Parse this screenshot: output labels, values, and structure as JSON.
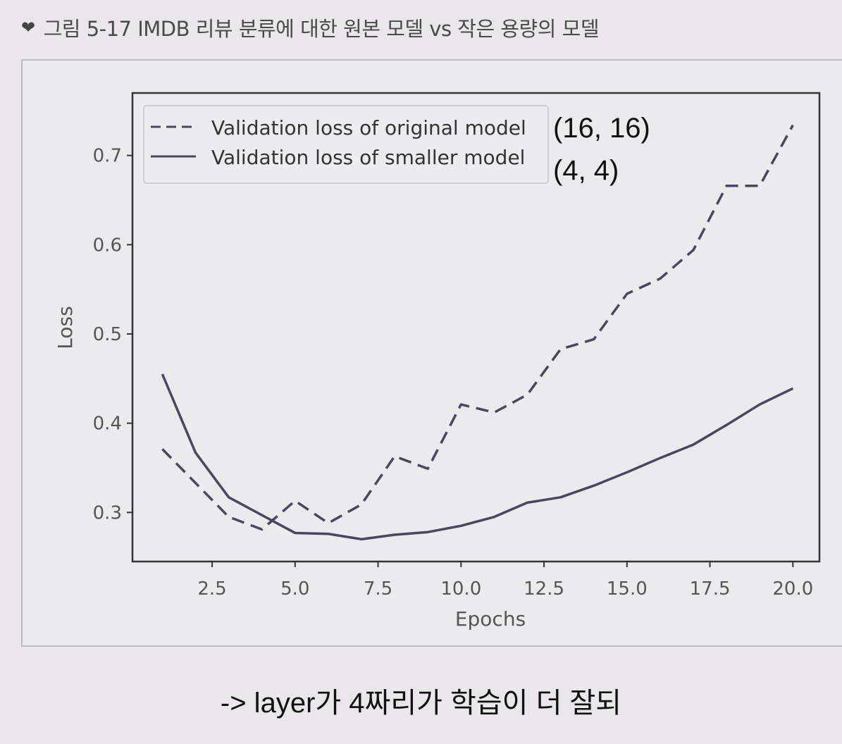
{
  "caption": {
    "icon": "chevron-down-icon",
    "text": "그림 5-17 IMDB 리뷰 분류에 대한 원본 모델 vs 작은 용량의 모델"
  },
  "annotations": {
    "original_size": "(16, 16)",
    "smaller_size": "(4, 4)",
    "note": "-> layer가 4짜리가 학습이 더 잘되"
  },
  "chart_data": {
    "type": "line",
    "title": "",
    "xlabel": "Epochs",
    "ylabel": "Loss",
    "xlim": [
      0.1,
      20.8
    ],
    "ylim": [
      0.245,
      0.77
    ],
    "xticks": [
      "2.5",
      "5.0",
      "7.5",
      "10.0",
      "12.5",
      "15.0",
      "17.5",
      "20.0"
    ],
    "yticks": [
      "0.3",
      "0.4",
      "0.5",
      "0.6",
      "0.7"
    ],
    "legend_position": "top-left",
    "grid": false,
    "line_color": "#4a4560",
    "x": [
      1,
      2,
      3,
      4,
      5,
      6,
      7,
      8,
      9,
      10,
      11,
      12,
      13,
      14,
      15,
      16,
      17,
      18,
      19,
      20
    ],
    "series": [
      {
        "name": "Validation loss of original model",
        "style": "dashed",
        "values": [
          0.371,
          0.333,
          0.295,
          0.281,
          0.313,
          0.288,
          0.309,
          0.363,
          0.349,
          0.421,
          0.412,
          0.432,
          0.483,
          0.494,
          0.545,
          0.562,
          0.594,
          0.666,
          0.666,
          0.734
        ]
      },
      {
        "name": "Validation loss of smaller model",
        "style": "solid",
        "values": [
          0.455,
          0.367,
          0.317,
          0.297,
          0.277,
          0.276,
          0.27,
          0.275,
          0.278,
          0.285,
          0.295,
          0.311,
          0.317,
          0.33,
          0.345,
          0.361,
          0.376,
          0.398,
          0.421,
          0.439
        ]
      }
    ]
  }
}
